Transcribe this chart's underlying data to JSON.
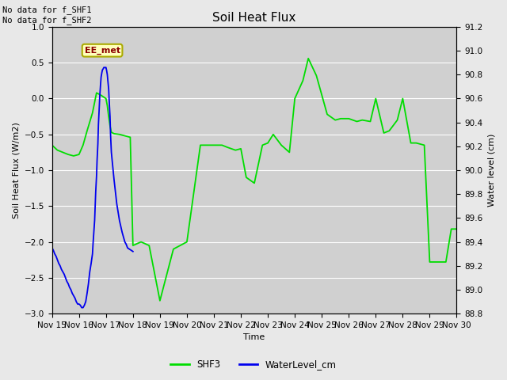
{
  "title": "Soil Heat Flux",
  "ylabel_left": "Soil Heat Flux (W/m2)",
  "ylabel_right": "Water level (cm)",
  "xlabel": "Time",
  "annotation_text": "No data for f_SHF1\nNo data for f_SHF2",
  "box_label": "EE_met",
  "ylim_left": [
    -3.0,
    1.0
  ],
  "ylim_right": [
    88.8,
    91.2
  ],
  "fig_bg_color": "#e8e8e8",
  "plot_bg_color": "#d0d0d0",
  "shf3_color": "#00dd00",
  "water_color": "#0000ee",
  "legend_labels": [
    "SHF3",
    "WaterLevel_cm"
  ],
  "shf3_x": [
    15.0,
    15.2,
    15.4,
    15.6,
    15.8,
    16.0,
    16.15,
    16.3,
    16.5,
    16.65,
    16.8,
    17.0,
    17.05,
    17.1,
    17.15,
    17.2,
    17.3,
    17.5,
    17.7,
    17.9,
    18.0,
    18.3,
    18.6,
    19.0,
    19.5,
    20.0,
    20.5,
    21.0,
    21.3,
    21.5,
    21.8,
    22.0,
    22.2,
    22.5,
    22.8,
    23.0,
    23.2,
    23.5,
    23.8,
    24.0,
    24.3,
    24.5,
    24.8,
    25.0,
    25.2,
    25.5,
    25.7,
    26.0,
    26.3,
    26.5,
    26.8,
    27.0,
    27.3,
    27.5,
    27.8,
    28.0,
    28.3,
    28.5,
    28.8,
    29.0,
    29.3,
    29.6,
    29.8,
    30.0
  ],
  "shf3_y": [
    -0.65,
    -0.72,
    -0.75,
    -0.78,
    -0.8,
    -0.78,
    -0.65,
    -0.45,
    -0.2,
    0.08,
    0.05,
    0.0,
    -0.1,
    -0.25,
    -0.38,
    -0.47,
    -0.49,
    -0.5,
    -0.52,
    -0.54,
    -2.05,
    -2.0,
    -2.05,
    -2.82,
    -2.1,
    -2.0,
    -0.65,
    -0.65,
    -0.65,
    -0.68,
    -0.72,
    -0.7,
    -1.1,
    -1.18,
    -0.65,
    -0.62,
    -0.5,
    -0.65,
    -0.75,
    0.0,
    0.25,
    0.56,
    0.32,
    0.05,
    -0.22,
    -0.3,
    -0.28,
    -0.28,
    -0.32,
    -0.3,
    -0.32,
    0.0,
    -0.48,
    -0.45,
    -0.3,
    0.0,
    -0.62,
    -0.62,
    -0.65,
    -2.28,
    -2.28,
    -2.28,
    -1.82,
    -1.82
  ],
  "water_x": [
    15.0,
    15.05,
    15.1,
    15.15,
    15.2,
    15.25,
    15.3,
    15.35,
    15.4,
    15.45,
    15.5,
    15.55,
    15.6,
    15.65,
    15.7,
    15.75,
    15.8,
    15.85,
    15.9,
    15.95,
    16.0,
    16.05,
    16.1,
    16.15,
    16.2,
    16.25,
    16.3,
    16.35,
    16.4,
    16.45,
    16.5,
    16.52,
    16.55,
    16.58,
    16.6,
    16.62,
    16.65,
    16.67,
    16.7,
    16.72,
    16.75,
    16.77,
    16.8,
    16.82,
    16.85,
    16.87,
    16.9,
    16.92,
    16.95,
    16.97,
    17.0,
    17.02,
    17.05,
    17.07,
    17.1,
    17.12,
    17.15,
    17.17,
    17.2,
    17.3,
    17.4,
    17.5,
    17.6,
    17.65,
    17.7,
    17.75,
    17.8,
    18.0
  ],
  "water_y": [
    89.35,
    89.33,
    89.3,
    89.28,
    89.25,
    89.22,
    89.2,
    89.17,
    89.15,
    89.13,
    89.1,
    89.07,
    89.05,
    89.02,
    89.0,
    88.97,
    88.95,
    88.93,
    88.9,
    88.88,
    88.88,
    88.87,
    88.85,
    88.85,
    88.87,
    88.9,
    88.97,
    89.05,
    89.15,
    89.22,
    89.3,
    89.38,
    89.48,
    89.58,
    89.7,
    89.82,
    89.95,
    90.08,
    90.22,
    90.38,
    90.52,
    90.62,
    90.72,
    90.78,
    90.82,
    90.84,
    90.85,
    90.86,
    90.86,
    90.86,
    90.86,
    90.84,
    90.8,
    90.75,
    90.68,
    90.58,
    90.45,
    90.3,
    90.15,
    89.92,
    89.72,
    89.58,
    89.48,
    89.44,
    89.4,
    89.38,
    89.35,
    89.32
  ]
}
